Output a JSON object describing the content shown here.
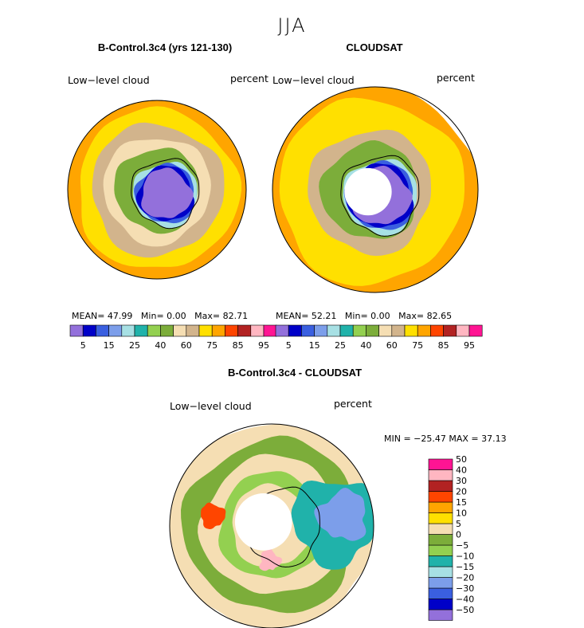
{
  "figure": {
    "season": "JJA",
    "panels": [
      {
        "title": "B-Control.3c4 (yrs 121-130)",
        "variable": "Low−level cloud",
        "units": "percent",
        "mean_label": "MEAN=",
        "mean_value": "47.99",
        "min_label": "Min=",
        "min_value": "0.00",
        "max_label": "Max=",
        "max_value": "82.71"
      },
      {
        "title": "CLOUDSAT",
        "variable": "Low−level cloud",
        "units": "percent",
        "mean_label": "MEAN=",
        "mean_value": "52.21",
        "min_label": "Min=",
        "min_value": "0.00",
        "max_label": "Max=",
        "max_value": "82.65"
      },
      {
        "title": "B-Control.3c4 - CLOUDSAT",
        "variable": "Low−level cloud",
        "units": "percent",
        "minmax_text": "MIN = −25.47 MAX =   37.13"
      }
    ]
  },
  "chart_data": [
    {
      "type": "heatmap",
      "title": "B-Control.3c4 (yrs 121-130)",
      "projection": "south polar stereographic",
      "variable": "Low−level cloud",
      "units": "percent",
      "levels": [
        5,
        10,
        15,
        20,
        25,
        30,
        40,
        50,
        60,
        70,
        75,
        80,
        85,
        90,
        95
      ],
      "tick_labels": [
        "5",
        "15",
        "25",
        "40",
        "60",
        "75",
        "85",
        "95"
      ],
      "colors": [
        "#9370DB",
        "#0000C8",
        "#3A5FE0",
        "#7C9EEA",
        "#A7E0E4",
        "#20B2AA",
        "#93D050",
        "#7CAD3A",
        "#F5DEB3",
        "#D2B48C",
        "#FFE000",
        "#FFA500",
        "#FF4500",
        "#B22222",
        "#FFB6C1",
        "#FF1493"
      ],
      "stats": {
        "mean": 47.99,
        "min": 0.0,
        "max": 82.71
      },
      "ring_pattern": [
        {
          "region": "interior",
          "value": 2
        },
        {
          "region": "coast",
          "value": 45
        },
        {
          "region": "inner-ocean",
          "value": 58
        },
        {
          "region": "mid-ocean",
          "value": 65
        },
        {
          "region": "outer-ocean",
          "value": 72
        },
        {
          "region": "rim",
          "value": 77
        }
      ]
    },
    {
      "type": "heatmap",
      "title": "CLOUDSAT",
      "projection": "south polar stereographic",
      "variable": "Low−level cloud",
      "units": "percent",
      "levels": [
        5,
        10,
        15,
        20,
        25,
        30,
        40,
        50,
        60,
        70,
        75,
        80,
        85,
        90,
        95
      ],
      "tick_labels": [
        "5",
        "15",
        "25",
        "40",
        "60",
        "75",
        "85",
        "95"
      ],
      "colors": [
        "#9370DB",
        "#0000C8",
        "#3A5FE0",
        "#7C9EEA",
        "#A7E0E4",
        "#20B2AA",
        "#93D050",
        "#7CAD3A",
        "#F5DEB3",
        "#D2B48C",
        "#FFE000",
        "#FFA500",
        "#FF4500",
        "#B22222",
        "#FFB6C1",
        "#FF1493"
      ],
      "stats": {
        "mean": 52.21,
        "min": 0.0,
        "max": 82.65
      },
      "pole_missing": true,
      "ring_pattern": [
        {
          "region": "interior",
          "value": 2
        },
        {
          "region": "coast",
          "value": 45
        },
        {
          "region": "inner-ocean",
          "value": 62
        },
        {
          "region": "mid-ocean",
          "value": 70
        },
        {
          "region": "outer-ocean",
          "value": 74
        },
        {
          "region": "rim",
          "value": 78
        }
      ]
    },
    {
      "type": "heatmap",
      "title": "B-Control.3c4 - CLOUDSAT",
      "projection": "south polar stereographic",
      "variable": "Low−level cloud",
      "units": "percent",
      "levels": [
        -50,
        -40,
        -30,
        -20,
        -15,
        -10,
        -5,
        0,
        5,
        10,
        15,
        20,
        30,
        40,
        50
      ],
      "tick_labels": [
        "−50",
        "−40",
        "−30",
        "−20",
        "−15",
        "−10",
        "−5",
        "0",
        "5",
        "10",
        "15",
        "20",
        "30",
        "40",
        "50"
      ],
      "colors": [
        "#9370DB",
        "#0000C8",
        "#3A5FE0",
        "#7C9EEA",
        "#A7E0E4",
        "#20B2AA",
        "#93D050",
        "#7CAD3A",
        "#F5DEB3",
        "#FFE000",
        "#FFA500",
        "#FF4500",
        "#B22222",
        "#FFB6C1",
        "#FF1493"
      ],
      "stats": {
        "min": -25.47,
        "max": 37.13
      },
      "pole_missing": true
    }
  ]
}
